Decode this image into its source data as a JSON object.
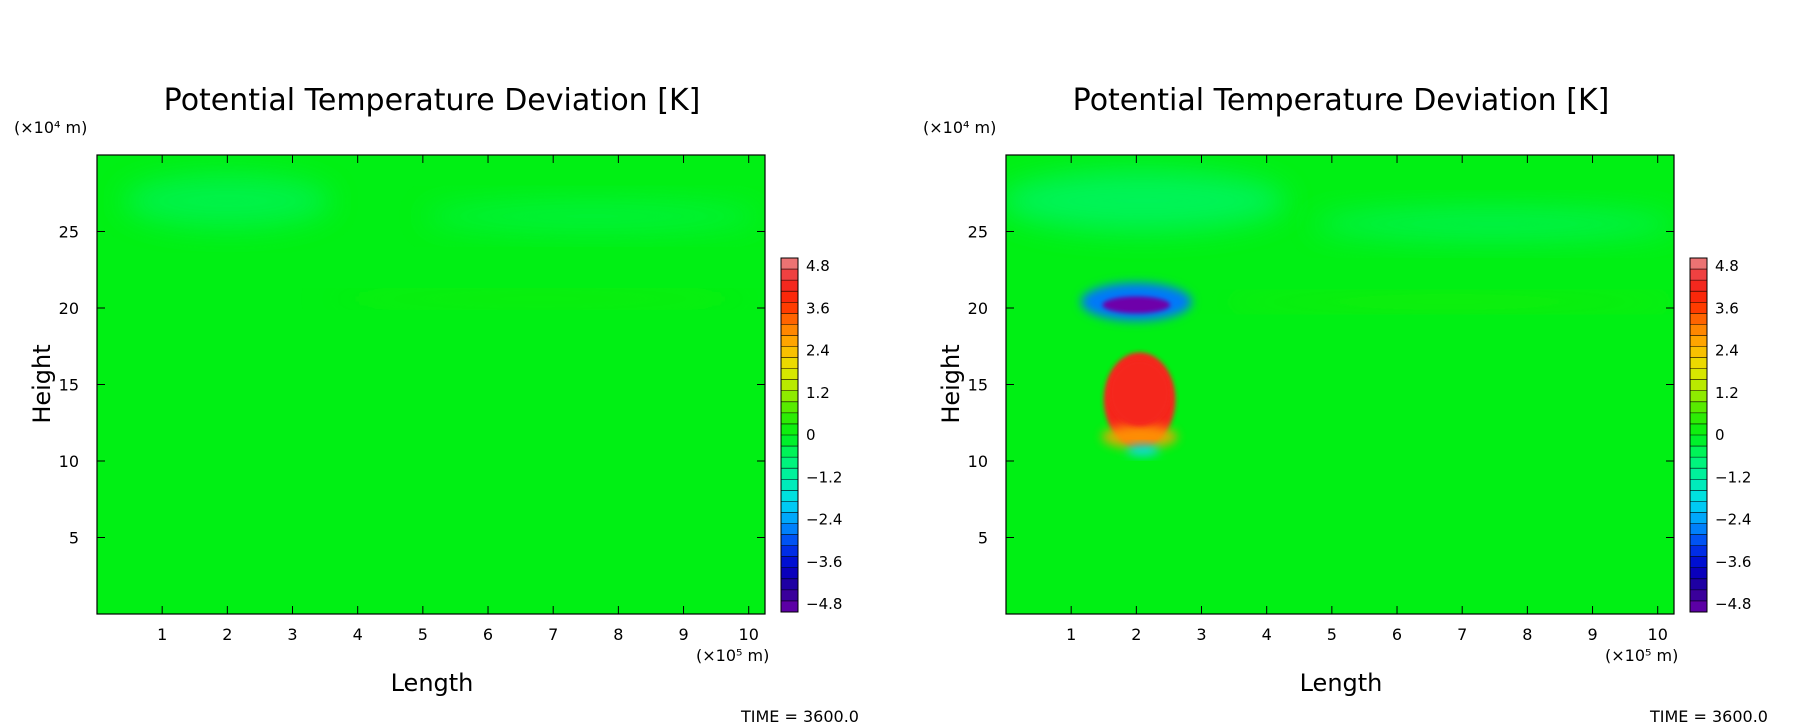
{
  "chart_data": [
    {
      "type": "heatmap",
      "title": "Potential Temperature Deviation [K]",
      "xlabel": "Length",
      "ylabel": "Height",
      "x_unit": "(×10⁵ m)",
      "y_unit": "(×10⁴ m)",
      "x_ticks": [
        1,
        2,
        3,
        4,
        5,
        6,
        7,
        8,
        9,
        10
      ],
      "y_ticks": [
        5,
        10,
        15,
        20,
        25
      ],
      "xlim": [
        0,
        10.25
      ],
      "ylim": [
        0,
        30
      ],
      "colorbar": {
        "ticks": [
          "4.8",
          "3.6",
          "2.4",
          "1.2",
          "0",
          "−1.2",
          "−2.4",
          "−3.6",
          "−4.8"
        ],
        "range": [
          -4.8,
          4.8
        ]
      },
      "footer": "TIME = 3600.0",
      "background_value": 0,
      "features": [
        {
          "kind": "weak-negative",
          "x": 2.0,
          "y": 27.0,
          "rx": 1.6,
          "ry": 1.7,
          "value": -0.4
        },
        {
          "kind": "weak-negative",
          "x": 7.6,
          "y": 26.0,
          "rx": 2.6,
          "ry": 1.0,
          "value": -0.3
        },
        {
          "kind": "weak-positive",
          "x": 6.8,
          "y": 20.6,
          "rx": 3.4,
          "ry": 0.35,
          "value": 0.3
        }
      ]
    },
    {
      "type": "heatmap",
      "title": "Potential Temperature Deviation [K]",
      "xlabel": "Length",
      "ylabel": "Height",
      "x_unit": "(×10⁵ m)",
      "y_unit": "(×10⁴ m)",
      "x_ticks": [
        1,
        2,
        3,
        4,
        5,
        6,
        7,
        8,
        9,
        10
      ],
      "y_ticks": [
        5,
        10,
        15,
        20,
        25
      ],
      "xlim": [
        0,
        10.25
      ],
      "ylim": [
        0,
        30
      ],
      "colorbar": {
        "ticks": [
          "4.8",
          "3.6",
          "2.4",
          "1.2",
          "0",
          "−1.2",
          "−2.4",
          "−3.6",
          "−4.8"
        ],
        "range": [
          -4.8,
          4.8
        ]
      },
      "footer": "TIME = 3600.0",
      "background_value": 0,
      "features": [
        {
          "kind": "weak-negative",
          "x": 2.1,
          "y": 27.0,
          "rx": 2.2,
          "ry": 2.0,
          "value": -0.5
        },
        {
          "kind": "weak-negative",
          "x": 7.5,
          "y": 25.5,
          "rx": 2.8,
          "ry": 1.1,
          "value": -0.4
        },
        {
          "kind": "weak-positive",
          "x": 6.8,
          "y": 20.4,
          "rx": 3.6,
          "ry": 0.4,
          "value": 0.4
        },
        {
          "kind": "cold-cap-halo",
          "x": 2.0,
          "y": 20.4,
          "rx": 0.85,
          "ry": 1.25,
          "value": -2.6
        },
        {
          "kind": "cold-cap",
          "x": 2.0,
          "y": 20.2,
          "rx": 0.52,
          "ry": 0.55,
          "value": -4.8
        },
        {
          "kind": "warm-bubble",
          "x": 2.05,
          "y": 14.0,
          "rx": 0.55,
          "ry": 3.1,
          "value": 4.0
        },
        {
          "kind": "cool-base",
          "x": 2.1,
          "y": 10.7,
          "rx": 0.25,
          "ry": 0.35,
          "value": -1.8
        }
      ]
    }
  ]
}
